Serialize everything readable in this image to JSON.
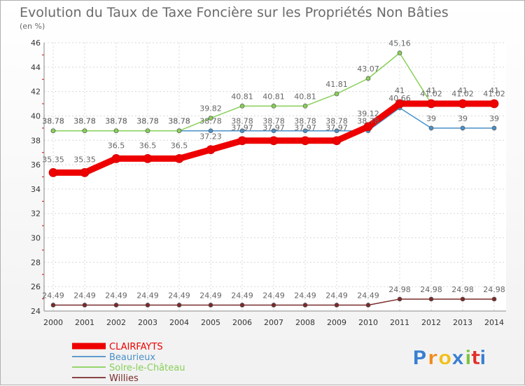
{
  "chart_data": {
    "type": "line",
    "title": "Evolution du Taux de Taxe Foncière sur les Propriétés Non Bâties",
    "subtitle": "(en %)",
    "x": [
      "2000",
      "2001",
      "2002",
      "2003",
      "2004",
      "2005",
      "2006",
      "2007",
      "2008",
      "2009",
      "2010",
      "2011",
      "2012",
      "2013",
      "2014"
    ],
    "ylim": [
      24,
      46
    ],
    "yticks": [
      "24",
      "26",
      "28",
      "30",
      "32",
      "34",
      "36",
      "38",
      "40",
      "42",
      "44",
      "46"
    ],
    "grid": true,
    "legend_position": "bottom-left",
    "series": [
      {
        "name": "Willies",
        "color": "#7a2a2a",
        "values": [
          24.49,
          24.49,
          24.49,
          24.49,
          24.49,
          24.49,
          24.49,
          24.49,
          24.49,
          24.49,
          24.49,
          24.98,
          24.98,
          24.98,
          24.98
        ],
        "labels": [
          "24.49",
          "24.49",
          "24.49",
          "24.49",
          "24.49",
          "24.49",
          "24.49",
          "24.49",
          "24.49",
          "24.49",
          "24.49",
          "24.98",
          "24.98",
          "24.98",
          "24.98"
        ]
      },
      {
        "name": "Beaurieux",
        "color": "#4a90c8",
        "values": [
          38.78,
          38.78,
          38.78,
          38.78,
          38.78,
          38.78,
          38.78,
          38.78,
          38.78,
          38.78,
          38.78,
          40.66,
          39,
          39,
          39
        ],
        "labels": [
          "38.78",
          "38.78",
          "38.78",
          "38.78",
          "38.78",
          "38.78",
          "38.78",
          "38.78",
          "38.78",
          "38.78",
          "38.78",
          "40.66",
          "39",
          "39",
          "39"
        ]
      },
      {
        "name": "Solre-le-Château",
        "color": "#88d058",
        "values": [
          38.78,
          38.78,
          38.78,
          38.78,
          38.78,
          39.82,
          40.81,
          40.81,
          40.81,
          41.81,
          43.07,
          45.16,
          41.02,
          41.02,
          41.02
        ],
        "labels": [
          "38.78",
          "38.78",
          "38.78",
          "38.78",
          "38.78",
          "39.82",
          "40.81",
          "40.81",
          "40.81",
          "41.81",
          "43.07",
          "45.16",
          "41.02",
          "41.02",
          "41.02"
        ]
      },
      {
        "name": "CLAIRFAYTS",
        "color": "#ee0000",
        "values": [
          35.35,
          35.35,
          36.5,
          36.5,
          36.5,
          37.23,
          37.97,
          37.97,
          37.97,
          37.97,
          39.12,
          41,
          41,
          41,
          41
        ],
        "labels": [
          "35.35",
          "35.35",
          "36.5",
          "36.5",
          "36.5",
          "37.23",
          "37.97",
          "37.97",
          "37.97",
          "37.97",
          "39.12",
          "41",
          "41",
          "41",
          "41"
        ]
      }
    ],
    "legend": [
      "CLAIRFAYTS",
      "Beaurieux",
      "Solre-le-Château",
      "Willies"
    ]
  },
  "branding": {
    "logo_text": "Proxiti",
    "logo_letters": [
      "P",
      "r",
      "o",
      "x",
      "i",
      "t",
      "i"
    ],
    "logo_colors": [
      "#3a7fd0",
      "#f08a1c",
      "#f0c020",
      "#3a7fd0",
      "#7cc242",
      "#e0302a",
      "#3a7fd0"
    ]
  }
}
